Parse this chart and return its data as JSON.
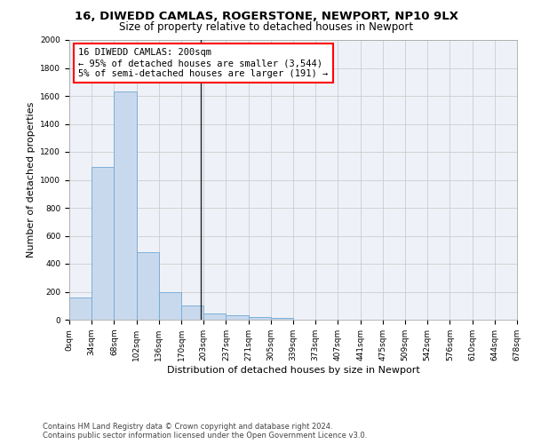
{
  "title_line1": "16, DIWEDD CAMLAS, ROGERSTONE, NEWPORT, NP10 9LX",
  "title_line2": "Size of property relative to detached houses in Newport",
  "xlabel": "Distribution of detached houses by size in Newport",
  "ylabel": "Number of detached properties",
  "bar_values": [
    160,
    1090,
    1630,
    480,
    200,
    100,
    45,
    30,
    20,
    15,
    0,
    0,
    0,
    0,
    0,
    0,
    0,
    0,
    0,
    0
  ],
  "bar_color": "#c9d9ed",
  "bar_edge_color": "#6fa8d6",
  "x_labels": [
    "0sqm",
    "34sqm",
    "68sqm",
    "102sqm",
    "136sqm",
    "170sqm",
    "203sqm",
    "237sqm",
    "271sqm",
    "305sqm",
    "339sqm",
    "373sqm",
    "407sqm",
    "441sqm",
    "475sqm",
    "509sqm",
    "542sqm",
    "576sqm",
    "610sqm",
    "644sqm",
    "678sqm"
  ],
  "vline_x": 5.88,
  "vline_color": "#222222",
  "annotation_text": "16 DIWEDD CAMLAS: 200sqm\n← 95% of detached houses are smaller (3,544)\n5% of semi-detached houses are larger (191) →",
  "annotation_box_color": "white",
  "annotation_box_edge": "red",
  "ylim": [
    0,
    2000
  ],
  "yticks": [
    0,
    200,
    400,
    600,
    800,
    1000,
    1200,
    1400,
    1600,
    1800,
    2000
  ],
  "grid_color": "#cccccc",
  "background_color": "#eef2f8",
  "footer_line1": "Contains HM Land Registry data © Crown copyright and database right 2024.",
  "footer_line2": "Contains public sector information licensed under the Open Government Licence v3.0.",
  "title_fontsize": 9.5,
  "subtitle_fontsize": 8.5,
  "axis_label_fontsize": 8,
  "tick_fontsize": 6.5,
  "annotation_fontsize": 7.5,
  "footer_fontsize": 6
}
